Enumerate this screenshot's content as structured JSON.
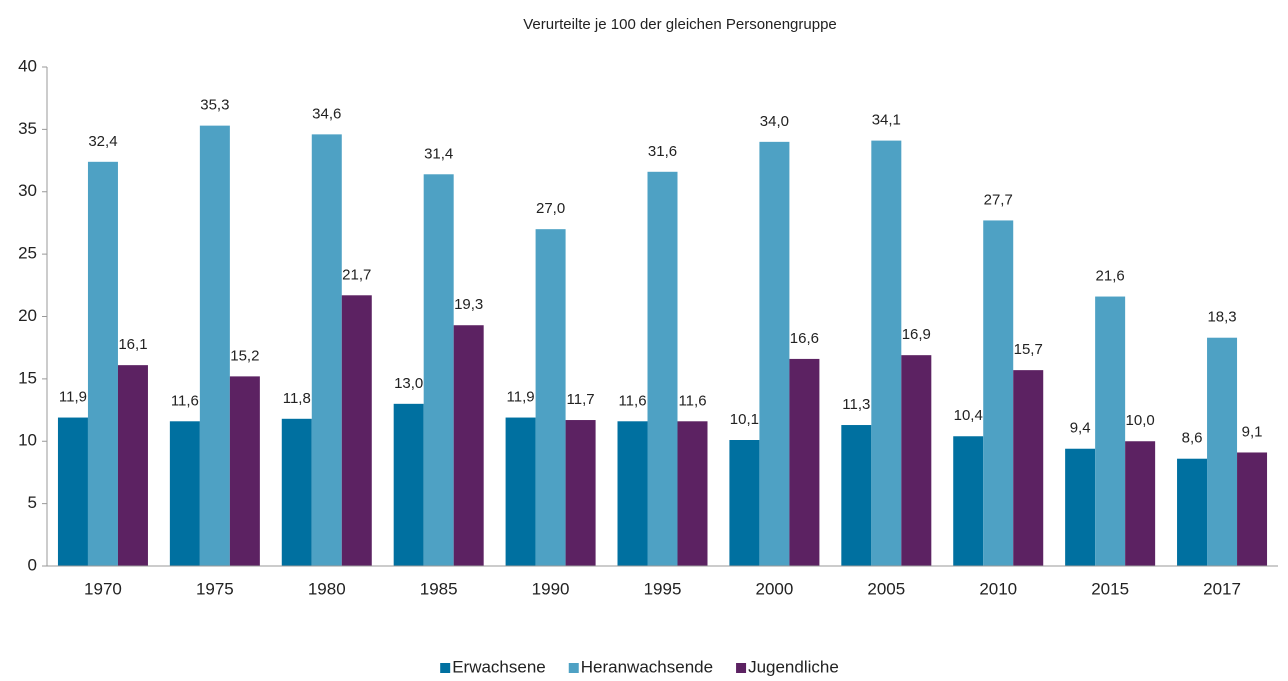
{
  "chart_data": {
    "type": "bar",
    "title": "Verurteilte je 100 der gleichen Personengruppe",
    "categories": [
      "1970",
      "1975",
      "1980",
      "1985",
      "1990",
      "1995",
      "2000",
      "2005",
      "2010",
      "2015",
      "2017"
    ],
    "series": [
      {
        "name": "Erwachsene",
        "color": "#0070a0",
        "values": [
          11.9,
          11.6,
          11.8,
          13.0,
          11.9,
          11.6,
          10.1,
          11.3,
          10.4,
          9.4,
          8.6
        ],
        "value_labels": [
          "11,9",
          "11,6",
          "11,8",
          "13,0",
          "11,9",
          "11,6",
          "10,1",
          "11,3",
          "10,4",
          "9,4",
          "8,6"
        ]
      },
      {
        "name": "Heranwachsende",
        "color": "#4ea1c4",
        "values": [
          32.4,
          35.3,
          34.6,
          31.4,
          27.0,
          31.6,
          34.0,
          34.1,
          27.7,
          21.6,
          18.3
        ],
        "value_labels": [
          "32,4",
          "35,3",
          "34,6",
          "31,4",
          "27,0",
          "31,6",
          "34,0",
          "34,1",
          "27,7",
          "21,6",
          "18,3"
        ]
      },
      {
        "name": "Jugendliche",
        "color": "#5c2262",
        "values": [
          16.1,
          15.2,
          21.7,
          19.3,
          11.7,
          11.6,
          16.6,
          16.9,
          15.7,
          10.0,
          9.1
        ],
        "value_labels": [
          "16,1",
          "15,2",
          "21,7",
          "19,3",
          "11,7",
          "11,6",
          "16,6",
          "16,9",
          "15,7",
          "10,0",
          "9,1"
        ]
      }
    ],
    "ylim": [
      0,
      40
    ],
    "yticks": [
      0,
      5,
      10,
      15,
      20,
      25,
      30,
      35,
      40
    ],
    "grid": false,
    "legend": "bottom"
  }
}
